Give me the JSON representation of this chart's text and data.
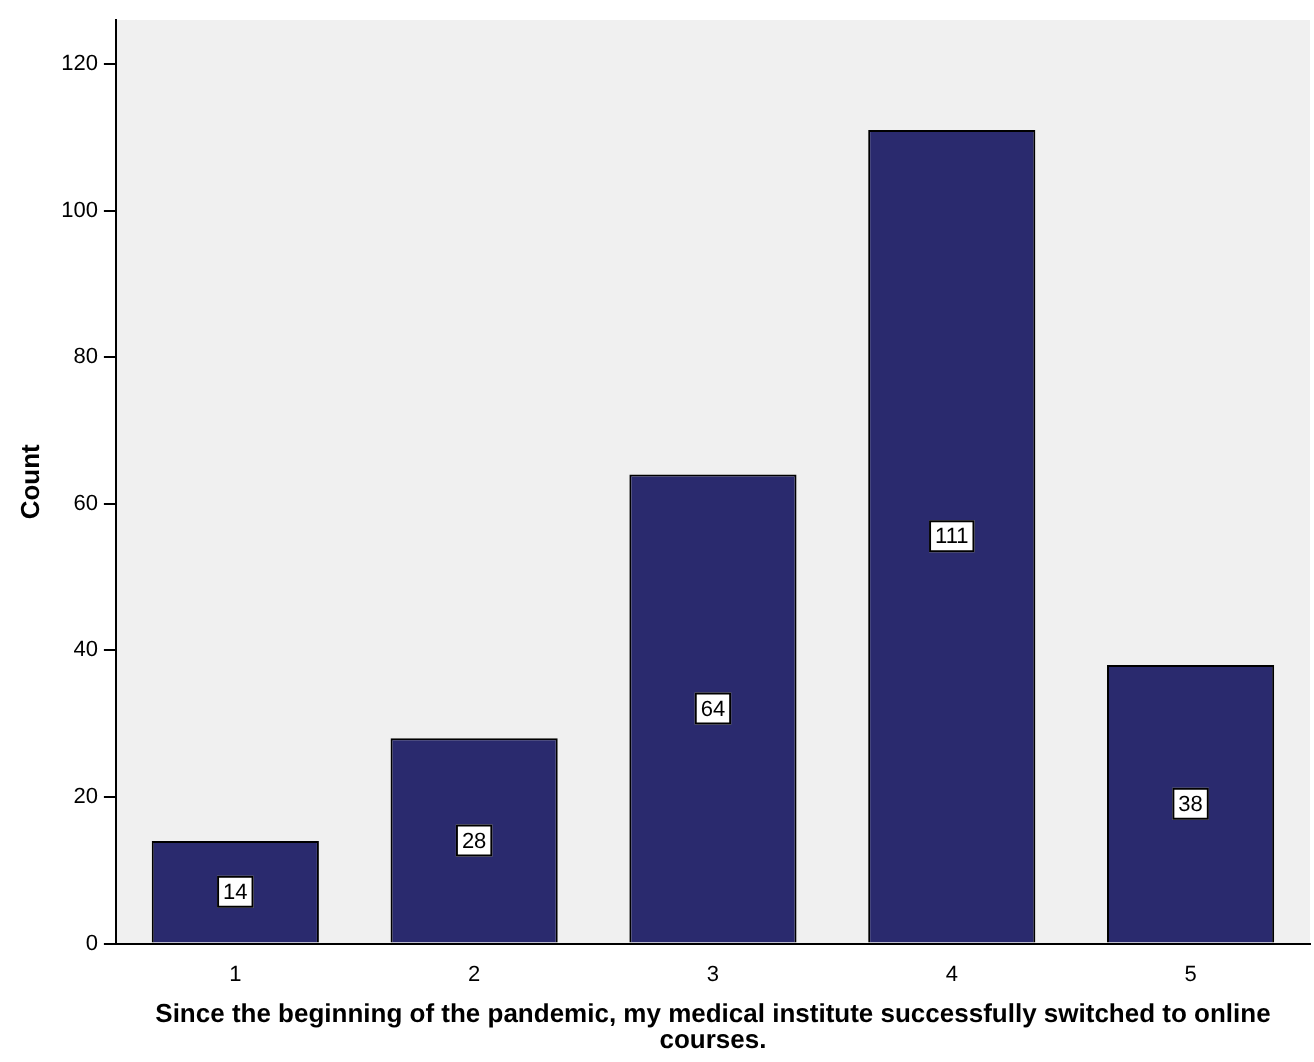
{
  "chart_data": {
    "type": "bar",
    "xlabel": "Since the beginning of the pandemic, my medical institute successfully switched to online courses.",
    "ylabel": "Count",
    "categories": [
      "1",
      "2",
      "3",
      "4",
      "5"
    ],
    "values": [
      14,
      28,
      64,
      111,
      38
    ],
    "color": "#2a2a6e",
    "ylim": [
      0,
      126
    ],
    "yticks": [
      0,
      20,
      40,
      60,
      80,
      100,
      120
    ],
    "grid": false,
    "legend": false,
    "data_labels": true
  }
}
